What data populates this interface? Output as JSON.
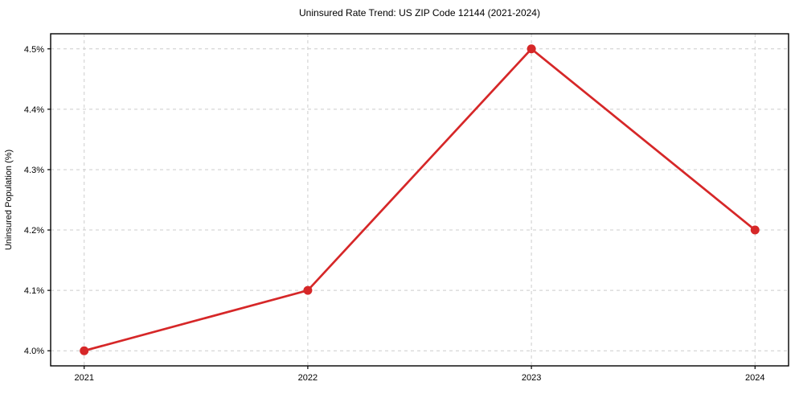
{
  "chart_data": {
    "type": "line",
    "title": "Uninsured Rate Trend: US ZIP Code 12144 (2021-2024)",
    "xlabel": "",
    "ylabel": "Uninsured Population (%)",
    "x": [
      2021,
      2022,
      2023,
      2024
    ],
    "x_tick_labels": [
      "2021",
      "2022",
      "2023",
      "2024"
    ],
    "series": [
      {
        "name": "Uninsured rate",
        "values": [
          4.0,
          4.1,
          4.5,
          4.2
        ],
        "color": "#d62728",
        "marker": "circle"
      }
    ],
    "y_ticks": [
      4.0,
      4.1,
      4.2,
      4.3,
      4.4,
      4.5
    ],
    "y_tick_labels": [
      "4.0%",
      "4.1%",
      "4.2%",
      "4.3%",
      "4.4%",
      "4.5%"
    ],
    "xlim": [
      2020.85,
      2024.15
    ],
    "ylim": [
      3.975,
      4.525
    ],
    "grid": true,
    "grid_line_style": "dashed",
    "grid_color": "#cccccc",
    "axis_color": "#000000",
    "background_color": "#ffffff",
    "legend_position": "none"
  }
}
